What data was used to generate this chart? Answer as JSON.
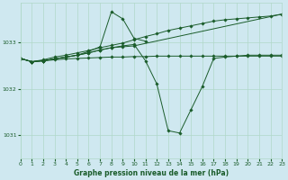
{
  "background_color": "#cfe8f0",
  "grid_color": "#b0d8c8",
  "line_color": "#1a5c2a",
  "xlabel": "Graphe pression niveau de la mer (hPa)",
  "xlim": [
    0,
    23
  ],
  "ylim": [
    1030.5,
    1033.85
  ],
  "yticks": [
    1031,
    1032,
    1033
  ],
  "xticks": [
    0,
    1,
    2,
    3,
    4,
    5,
    6,
    7,
    8,
    9,
    10,
    11,
    12,
    13,
    14,
    15,
    16,
    17,
    18,
    19,
    20,
    21,
    22,
    23
  ],
  "series": [
    {
      "x": [
        0,
        1,
        2,
        3,
        4,
        5,
        6,
        7,
        8,
        9,
        10,
        11,
        12,
        13,
        14,
        15,
        16,
        17,
        18,
        19,
        20,
        21,
        22,
        23
      ],
      "y": [
        1032.65,
        1032.58,
        1032.62,
        1032.68,
        1032.72,
        1032.77,
        1032.82,
        1032.88,
        1032.93,
        1032.98,
        1033.05,
        1033.12,
        1033.18,
        1033.25,
        1033.3,
        1033.35,
        1033.4,
        1033.45,
        1033.48,
        1033.5,
        1033.52,
        1033.54,
        1033.56,
        1033.6
      ]
    },
    {
      "x": [
        0,
        1,
        2,
        3,
        4,
        5,
        6,
        7,
        8,
        9,
        10,
        11,
        12,
        13,
        14,
        15,
        16,
        17,
        18,
        19,
        20,
        21,
        22,
        23
      ],
      "y": [
        1032.65,
        1032.58,
        1032.6,
        1032.62,
        1032.64,
        1032.65,
        1032.66,
        1032.67,
        1032.68,
        1032.68,
        1032.69,
        1032.69,
        1032.7,
        1032.7,
        1032.7,
        1032.7,
        1032.7,
        1032.7,
        1032.7,
        1032.7,
        1032.7,
        1032.7,
        1032.7,
        1032.7
      ]
    },
    {
      "x": [
        0,
        1,
        2,
        3,
        4,
        5,
        6,
        7,
        8,
        9,
        10,
        11
      ],
      "y": [
        1032.65,
        1032.58,
        1032.6,
        1032.64,
        1032.68,
        1032.72,
        1032.8,
        1032.9,
        1033.65,
        1033.5,
        1033.08,
        1033.02
      ]
    },
    {
      "x": [
        0,
        1,
        2,
        3,
        4,
        5,
        6,
        7,
        8,
        9,
        10,
        23
      ],
      "y": [
        1032.65,
        1032.58,
        1032.6,
        1032.64,
        1032.68,
        1032.72,
        1032.77,
        1032.83,
        1032.88,
        1032.9,
        1032.92,
        1033.6
      ]
    },
    {
      "x": [
        0,
        1,
        2,
        3,
        4,
        5,
        6,
        7,
        8,
        9,
        10,
        11,
        12,
        13,
        14,
        15,
        16,
        17,
        18,
        19,
        20,
        21,
        22,
        23
      ],
      "y": [
        1032.65,
        1032.58,
        1032.6,
        1032.64,
        1032.68,
        1032.72,
        1032.77,
        1032.83,
        1032.88,
        1032.92,
        1032.95,
        1032.6,
        1032.1,
        1031.1,
        1031.05,
        1031.55,
        1032.05,
        1032.65,
        1032.68,
        1032.7,
        1032.72,
        1032.72,
        1032.72,
        1032.72
      ]
    }
  ]
}
